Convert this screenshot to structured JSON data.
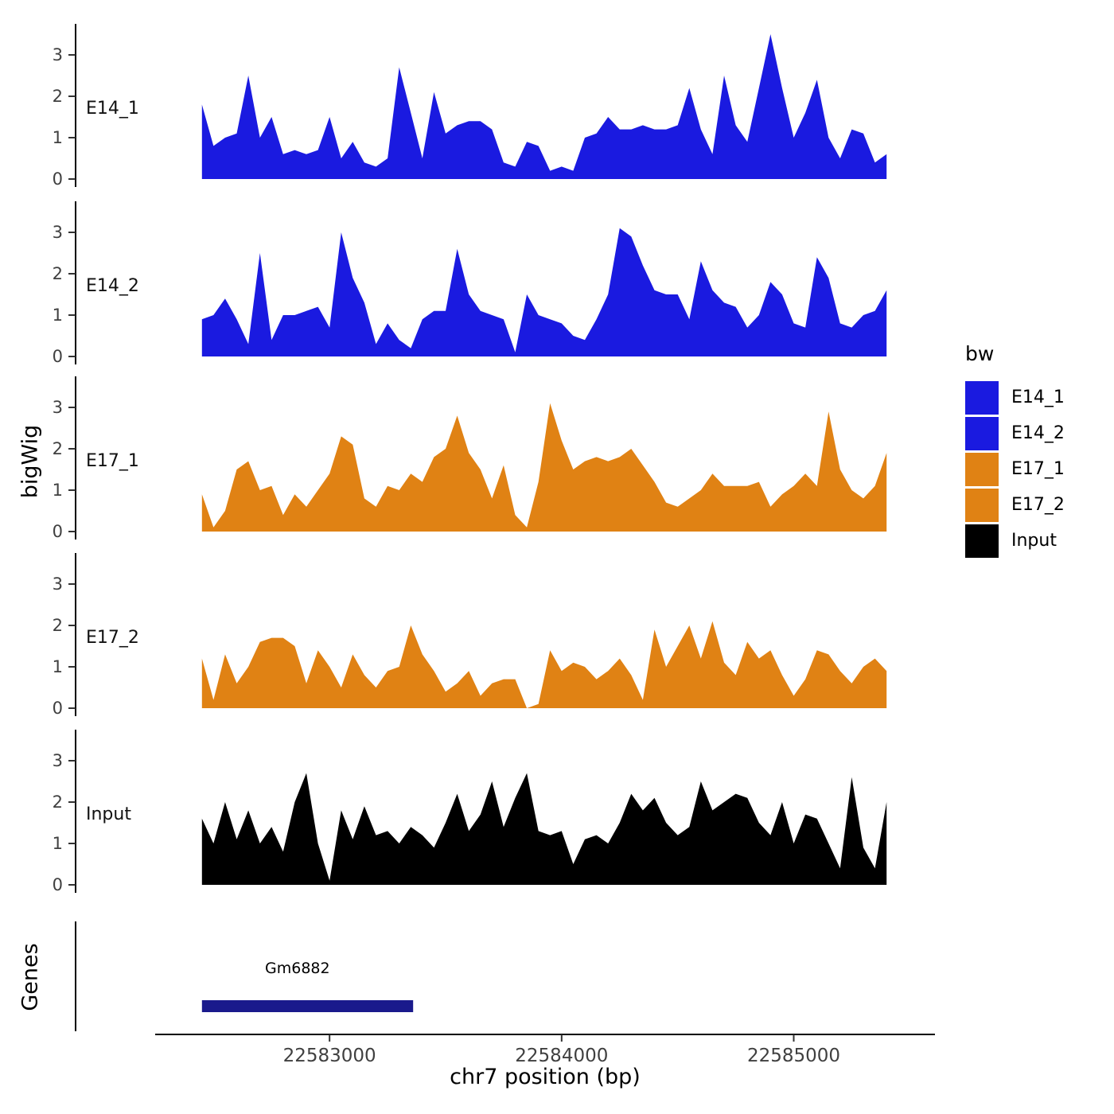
{
  "y_axis_label": "bigWig",
  "genes_axis_label": "Genes",
  "x_axis_label": "chr7 position (bp)",
  "gene": {
    "name": "Gm6882",
    "start": 22582450,
    "end": 22583360,
    "color": "#1A1A8C"
  },
  "legend": {
    "title": "bw",
    "entries": [
      {
        "label": "E14_1",
        "color": "#1A1AE0"
      },
      {
        "label": "E14_2",
        "color": "#1A1AE0"
      },
      {
        "label": "E17_1",
        "color": "#E08214"
      },
      {
        "label": "E17_2",
        "color": "#E08214"
      },
      {
        "label": "Input",
        "color": "#000000"
      }
    ]
  },
  "chart_data": {
    "type": "area",
    "title": "",
    "xlabel": "chr7 position (bp)",
    "ylabel": "bigWig",
    "x_range": [
      22582420,
      22585420
    ],
    "x_ticks": [
      22583000,
      22584000,
      22585000
    ],
    "y_ticks": [
      0,
      1,
      2,
      3
    ],
    "ylim": [
      0,
      3.5
    ],
    "x_start": 22582450,
    "x_step": 50,
    "series": [
      {
        "name": "E14_1",
        "color": "#1A1AE0",
        "values": [
          1.8,
          0.8,
          1.0,
          1.1,
          2.5,
          1.0,
          1.5,
          0.6,
          0.7,
          0.6,
          0.7,
          1.5,
          0.5,
          0.9,
          0.4,
          0.3,
          0.5,
          2.7,
          1.6,
          0.5,
          2.1,
          1.1,
          1.3,
          1.4,
          1.4,
          1.2,
          0.4,
          0.3,
          0.9,
          0.8,
          0.2,
          0.3,
          0.2,
          1.0,
          1.1,
          1.5,
          1.2,
          1.2,
          1.3,
          1.2,
          1.2,
          1.3,
          2.2,
          1.2,
          0.6,
          2.5,
          1.3,
          0.9,
          2.2,
          3.5,
          2.2,
          1.0,
          1.6,
          2.4,
          1.0,
          0.5,
          1.2,
          1.1,
          0.4,
          0.6
        ]
      },
      {
        "name": "E14_2",
        "color": "#1A1AE0",
        "values": [
          0.9,
          1.0,
          1.4,
          0.9,
          0.3,
          2.5,
          0.4,
          1.0,
          1.0,
          1.1,
          1.2,
          0.7,
          3.0,
          1.9,
          1.3,
          0.3,
          0.8,
          0.4,
          0.2,
          0.9,
          1.1,
          1.1,
          2.6,
          1.5,
          1.1,
          1.0,
          0.9,
          0.1,
          1.5,
          1.0,
          0.9,
          0.8,
          0.5,
          0.4,
          0.9,
          1.5,
          3.1,
          2.9,
          2.2,
          1.6,
          1.5,
          1.5,
          0.9,
          2.3,
          1.6,
          1.3,
          1.2,
          0.7,
          1.0,
          1.8,
          1.5,
          0.8,
          0.7,
          2.4,
          1.9,
          0.8,
          0.7,
          1.0,
          1.1,
          1.6
        ]
      },
      {
        "name": "E17_1",
        "color": "#E08214",
        "values": [
          0.9,
          0.1,
          0.5,
          1.5,
          1.7,
          1.0,
          1.1,
          0.4,
          0.9,
          0.6,
          1.0,
          1.4,
          2.3,
          2.1,
          0.8,
          0.6,
          1.1,
          1.0,
          1.4,
          1.2,
          1.8,
          2.0,
          2.8,
          1.9,
          1.5,
          0.8,
          1.6,
          0.4,
          0.1,
          1.2,
          3.1,
          2.2,
          1.5,
          1.7,
          1.8,
          1.7,
          1.8,
          2.0,
          1.6,
          1.2,
          0.7,
          0.6,
          0.8,
          1.0,
          1.4,
          1.1,
          1.1,
          1.1,
          1.2,
          0.6,
          0.9,
          1.1,
          1.4,
          1.1,
          2.9,
          1.5,
          1.0,
          0.8,
          1.1,
          1.9
        ]
      },
      {
        "name": "E17_2",
        "color": "#E08214",
        "values": [
          1.2,
          0.2,
          1.3,
          0.6,
          1.0,
          1.6,
          1.7,
          1.7,
          1.5,
          0.6,
          1.4,
          1.0,
          0.5,
          1.3,
          0.8,
          0.5,
          0.9,
          1.0,
          2.0,
          1.3,
          0.9,
          0.4,
          0.6,
          0.9,
          0.3,
          0.6,
          0.7,
          0.7,
          0.0,
          0.1,
          1.4,
          0.9,
          1.1,
          1.0,
          0.7,
          0.9,
          1.2,
          0.8,
          0.2,
          1.9,
          1.0,
          1.5,
          2.0,
          1.2,
          2.1,
          1.1,
          0.8,
          1.6,
          1.2,
          1.4,
          0.8,
          0.3,
          0.7,
          1.4,
          1.3,
          0.9,
          0.6,
          1.0,
          1.2,
          0.9
        ]
      },
      {
        "name": "Input",
        "color": "#000000",
        "values": [
          1.6,
          1.0,
          2.0,
          1.1,
          1.8,
          1.0,
          1.4,
          0.8,
          2.0,
          2.7,
          1.0,
          0.1,
          1.8,
          1.1,
          1.9,
          1.2,
          1.3,
          1.0,
          1.4,
          1.2,
          0.9,
          1.5,
          2.2,
          1.3,
          1.7,
          2.5,
          1.4,
          2.1,
          2.7,
          1.3,
          1.2,
          1.3,
          0.5,
          1.1,
          1.2,
          1.0,
          1.5,
          2.2,
          1.8,
          2.1,
          1.5,
          1.2,
          1.4,
          2.5,
          1.8,
          2.0,
          2.2,
          2.1,
          1.5,
          1.2,
          2.0,
          1.0,
          1.7,
          1.6,
          1.0,
          0.4,
          2.6,
          0.9,
          0.4,
          2.0
        ]
      }
    ]
  }
}
